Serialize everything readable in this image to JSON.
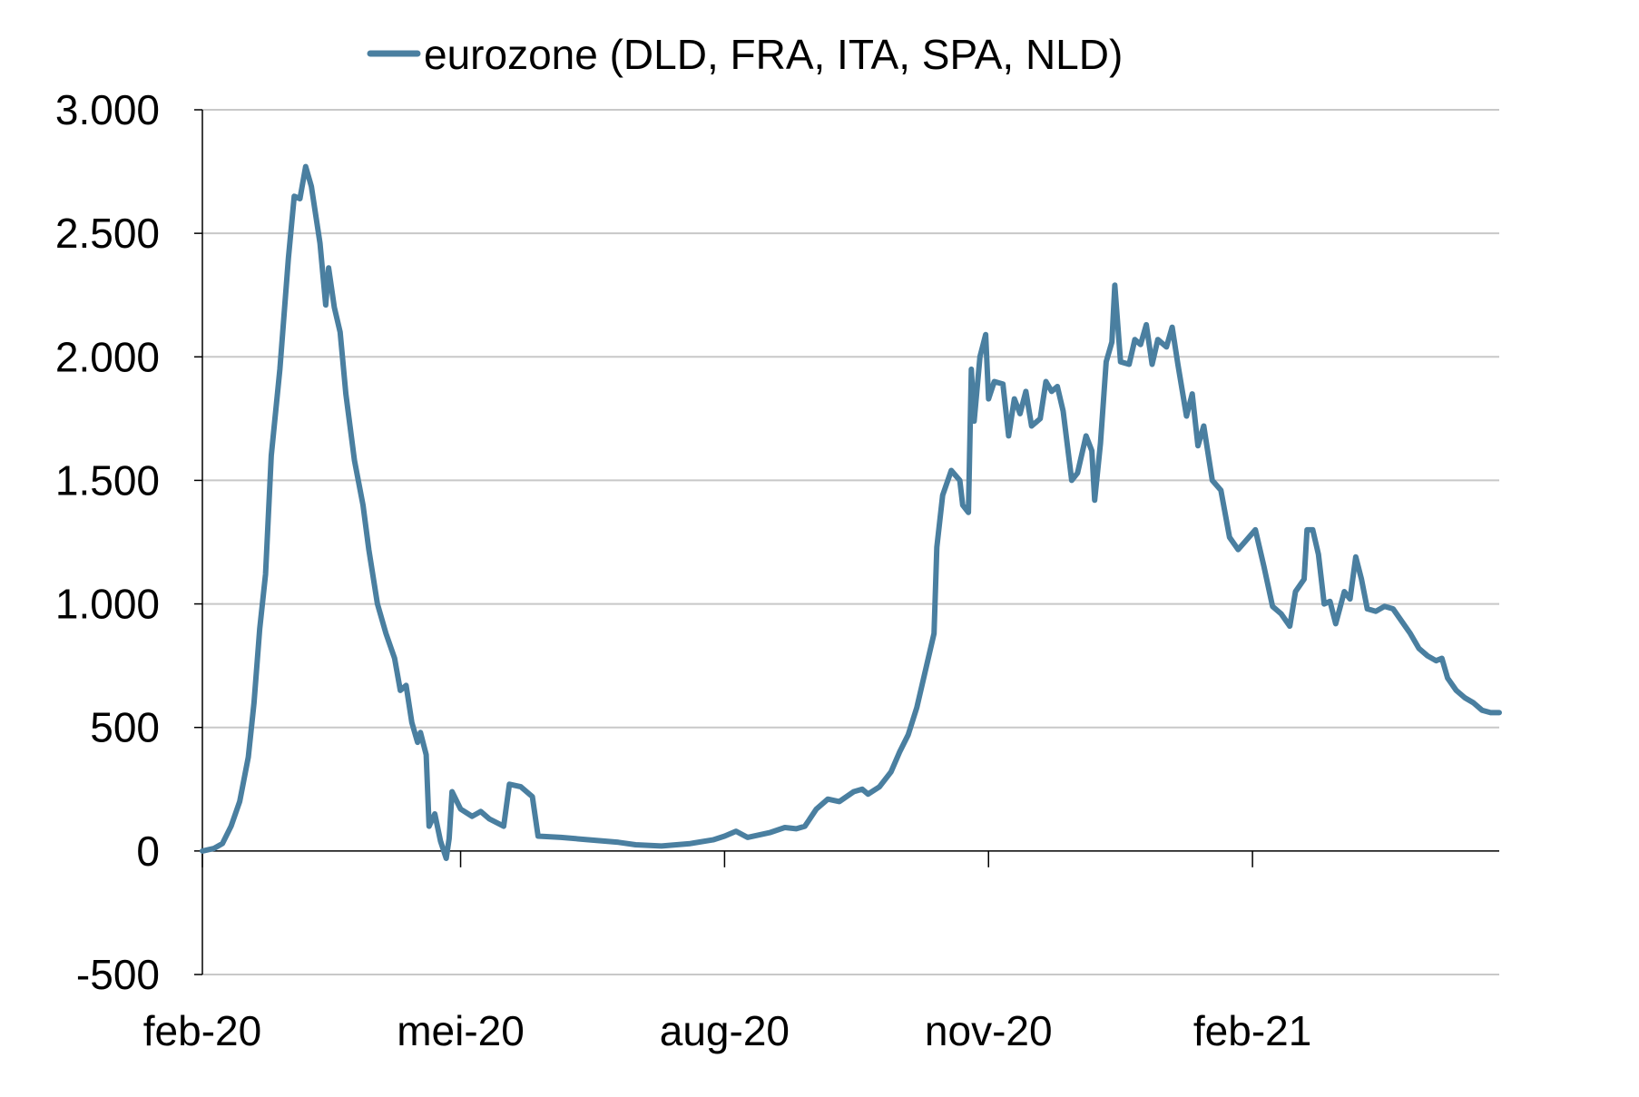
{
  "chart_data": {
    "type": "line",
    "title": "",
    "xlabel": "",
    "ylabel": "",
    "ylim": [
      -500,
      3000
    ],
    "yticks": [
      -500,
      0,
      500,
      1000,
      1500,
      2000,
      2500,
      3000
    ],
    "ytick_labels": [
      "-500",
      "0",
      "500",
      "1.000",
      "1.500",
      "2.000",
      "2.500",
      "3.000"
    ],
    "xlim": [
      "2020-02-01",
      "2021-04-28"
    ],
    "xticks": [
      "2020-02-01",
      "2020-05-01",
      "2020-08-01",
      "2020-11-01",
      "2021-02-01"
    ],
    "xtick_labels": [
      "feb-20",
      "mei-20",
      "aug-20",
      "nov-20",
      "feb-21"
    ],
    "grid": "horizontal",
    "legend_position": "top-center",
    "series": [
      {
        "name": "eurozone (DLD, FRA, ITA, SPA, NLD)",
        "color": "#4a7fa0",
        "points": [
          [
            "2020-02-01",
            0
          ],
          [
            "2020-02-05",
            10
          ],
          [
            "2020-02-08",
            30
          ],
          [
            "2020-02-11",
            100
          ],
          [
            "2020-02-14",
            200
          ],
          [
            "2020-02-17",
            380
          ],
          [
            "2020-02-19",
            600
          ],
          [
            "2020-02-21",
            900
          ],
          [
            "2020-02-23",
            1120
          ],
          [
            "2020-02-25",
            1600
          ],
          [
            "2020-02-28",
            1950
          ],
          [
            "2020-03-02",
            2400
          ],
          [
            "2020-03-04",
            2650
          ],
          [
            "2020-03-06",
            2640
          ],
          [
            "2020-03-08",
            2770
          ],
          [
            "2020-03-10",
            2690
          ],
          [
            "2020-03-13",
            2460
          ],
          [
            "2020-03-15",
            2210
          ],
          [
            "2020-03-16",
            2360
          ],
          [
            "2020-03-18",
            2200
          ],
          [
            "2020-03-20",
            2100
          ],
          [
            "2020-03-22",
            1850
          ],
          [
            "2020-03-25",
            1580
          ],
          [
            "2020-03-28",
            1400
          ],
          [
            "2020-03-30",
            1220
          ],
          [
            "2020-04-02",
            1000
          ],
          [
            "2020-04-05",
            880
          ],
          [
            "2020-04-08",
            780
          ],
          [
            "2020-04-10",
            650
          ],
          [
            "2020-04-12",
            670
          ],
          [
            "2020-04-14",
            520
          ],
          [
            "2020-04-16",
            440
          ],
          [
            "2020-04-17",
            480
          ],
          [
            "2020-04-19",
            390
          ],
          [
            "2020-04-20",
            100
          ],
          [
            "2020-04-22",
            150
          ],
          [
            "2020-04-24",
            40
          ],
          [
            "2020-04-26",
            -30
          ],
          [
            "2020-04-27",
            50
          ],
          [
            "2020-04-28",
            240
          ],
          [
            "2020-05-01",
            170
          ],
          [
            "2020-05-05",
            140
          ],
          [
            "2020-05-08",
            160
          ],
          [
            "2020-05-11",
            130
          ],
          [
            "2020-05-16",
            100
          ],
          [
            "2020-05-18",
            270
          ],
          [
            "2020-05-22",
            260
          ],
          [
            "2020-05-26",
            220
          ],
          [
            "2020-05-28",
            60
          ],
          [
            "2020-06-05",
            55
          ],
          [
            "2020-06-15",
            45
          ],
          [
            "2020-06-25",
            35
          ],
          [
            "2020-07-01",
            25
          ],
          [
            "2020-07-10",
            20
          ],
          [
            "2020-07-20",
            30
          ],
          [
            "2020-07-28",
            45
          ],
          [
            "2020-08-01",
            60
          ],
          [
            "2020-08-05",
            80
          ],
          [
            "2020-08-09",
            55
          ],
          [
            "2020-08-13",
            65
          ],
          [
            "2020-08-17",
            75
          ],
          [
            "2020-08-22",
            95
          ],
          [
            "2020-08-26",
            90
          ],
          [
            "2020-08-29",
            100
          ],
          [
            "2020-09-02",
            170
          ],
          [
            "2020-09-06",
            210
          ],
          [
            "2020-09-10",
            200
          ],
          [
            "2020-09-15",
            240
          ],
          [
            "2020-09-18",
            250
          ],
          [
            "2020-09-20",
            230
          ],
          [
            "2020-09-24",
            260
          ],
          [
            "2020-09-28",
            320
          ],
          [
            "2020-10-01",
            400
          ],
          [
            "2020-10-04",
            470
          ],
          [
            "2020-10-07",
            580
          ],
          [
            "2020-10-10",
            730
          ],
          [
            "2020-10-13",
            880
          ],
          [
            "2020-10-14",
            1230
          ],
          [
            "2020-10-16",
            1440
          ],
          [
            "2020-10-19",
            1540
          ],
          [
            "2020-10-22",
            1500
          ],
          [
            "2020-10-23",
            1400
          ],
          [
            "2020-10-25",
            1370
          ],
          [
            "2020-10-26",
            1950
          ],
          [
            "2020-10-27",
            1740
          ],
          [
            "2020-10-29",
            2000
          ],
          [
            "2020-10-31",
            2090
          ],
          [
            "2020-11-01",
            1830
          ],
          [
            "2020-11-03",
            1900
          ],
          [
            "2020-11-06",
            1890
          ],
          [
            "2020-11-08",
            1680
          ],
          [
            "2020-11-10",
            1830
          ],
          [
            "2020-11-12",
            1770
          ],
          [
            "2020-11-14",
            1860
          ],
          [
            "2020-11-16",
            1720
          ],
          [
            "2020-11-19",
            1750
          ],
          [
            "2020-11-21",
            1900
          ],
          [
            "2020-11-23",
            1860
          ],
          [
            "2020-11-25",
            1880
          ],
          [
            "2020-11-27",
            1780
          ],
          [
            "2020-11-30",
            1500
          ],
          [
            "2020-12-02",
            1530
          ],
          [
            "2020-12-05",
            1680
          ],
          [
            "2020-12-07",
            1620
          ],
          [
            "2020-12-08",
            1420
          ],
          [
            "2020-12-10",
            1650
          ],
          [
            "2020-12-12",
            1980
          ],
          [
            "2020-12-14",
            2060
          ],
          [
            "2020-12-15",
            2290
          ],
          [
            "2020-12-17",
            1980
          ],
          [
            "2020-12-20",
            1970
          ],
          [
            "2020-12-22",
            2070
          ],
          [
            "2020-12-24",
            2050
          ],
          [
            "2020-12-26",
            2130
          ],
          [
            "2020-12-28",
            1970
          ],
          [
            "2020-12-30",
            2070
          ],
          [
            "2021-01-02",
            2040
          ],
          [
            "2021-01-04",
            2120
          ],
          [
            "2021-01-06",
            1970
          ],
          [
            "2021-01-09",
            1760
          ],
          [
            "2021-01-11",
            1850
          ],
          [
            "2021-01-13",
            1640
          ],
          [
            "2021-01-15",
            1720
          ],
          [
            "2021-01-18",
            1500
          ],
          [
            "2021-01-21",
            1460
          ],
          [
            "2021-01-24",
            1270
          ],
          [
            "2021-01-27",
            1220
          ],
          [
            "2021-01-30",
            1260
          ],
          [
            "2021-02-02",
            1300
          ],
          [
            "2021-02-05",
            1150
          ],
          [
            "2021-02-08",
            990
          ],
          [
            "2021-02-11",
            960
          ],
          [
            "2021-02-14",
            910
          ],
          [
            "2021-02-16",
            1050
          ],
          [
            "2021-02-19",
            1100
          ],
          [
            "2021-02-20",
            1300
          ],
          [
            "2021-02-22",
            1300
          ],
          [
            "2021-02-24",
            1200
          ],
          [
            "2021-02-26",
            1000
          ],
          [
            "2021-02-28",
            1010
          ],
          [
            "2021-03-02",
            920
          ],
          [
            "2021-03-05",
            1050
          ],
          [
            "2021-03-07",
            1020
          ],
          [
            "2021-03-09",
            1190
          ],
          [
            "2021-03-11",
            1100
          ],
          [
            "2021-03-13",
            980
          ],
          [
            "2021-03-16",
            970
          ],
          [
            "2021-03-19",
            990
          ],
          [
            "2021-03-22",
            980
          ],
          [
            "2021-03-25",
            930
          ],
          [
            "2021-03-28",
            880
          ],
          [
            "2021-03-31",
            820
          ],
          [
            "2021-04-03",
            790
          ],
          [
            "2021-04-06",
            770
          ],
          [
            "2021-04-08",
            780
          ],
          [
            "2021-04-10",
            700
          ],
          [
            "2021-04-13",
            650
          ],
          [
            "2021-04-16",
            620
          ],
          [
            "2021-04-19",
            600
          ],
          [
            "2021-04-22",
            570
          ],
          [
            "2021-04-25",
            560
          ],
          [
            "2021-04-28",
            560
          ]
        ]
      }
    ]
  }
}
